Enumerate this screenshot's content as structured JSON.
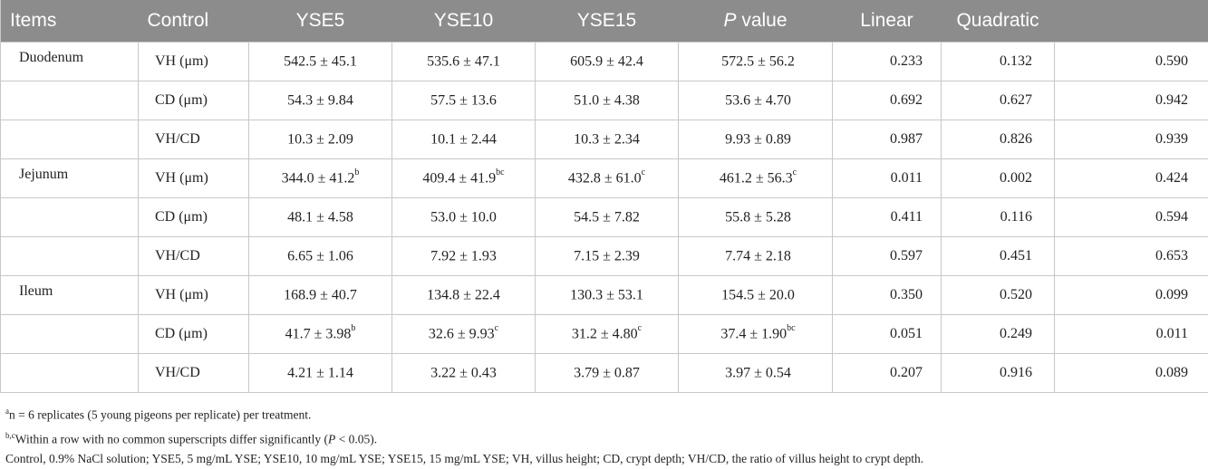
{
  "headers": [
    "Items",
    "Control",
    "YSE5",
    "YSE10",
    "YSE15",
    "value",
    "Linear",
    "Quadratic",
    ""
  ],
  "header_p_italic": "P",
  "rows": [
    {
      "item": "Duodenum",
      "param": "VH (μm)",
      "control": "542.5 ± 45.1",
      "control_sup": "",
      "yse5": "535.6 ± 47.1",
      "yse5_sup": "",
      "yse10": "605.9 ± 42.4",
      "yse10_sup": "",
      "yse15": "572.5 ± 56.2",
      "yse15_sup": "",
      "p": "0.233",
      "linear": "0.132",
      "quadratic": "0.590"
    },
    {
      "item": "",
      "param": "CD (μm)",
      "control": "54.3 ± 9.84",
      "control_sup": "",
      "yse5": "57.5 ± 13.6",
      "yse5_sup": "",
      "yse10": "51.0 ± 4.38",
      "yse10_sup": "",
      "yse15": "53.6 ± 4.70",
      "yse15_sup": "",
      "p": "0.692",
      "linear": "0.627",
      "quadratic": "0.942"
    },
    {
      "item": "",
      "param": "VH/CD",
      "control": "10.3 ± 2.09",
      "control_sup": "",
      "yse5": "10.1 ± 2.44",
      "yse5_sup": "",
      "yse10": "10.3 ± 2.34",
      "yse10_sup": "",
      "yse15": "9.93 ± 0.89",
      "yse15_sup": "",
      "p": "0.987",
      "linear": "0.826",
      "quadratic": "0.939"
    },
    {
      "item": "Jejunum",
      "param": "VH (μm)",
      "control": "344.0 ± 41.2",
      "control_sup": "b",
      "yse5": "409.4 ± 41.9",
      "yse5_sup": "bc",
      "yse10": "432.8 ± 61.0",
      "yse10_sup": "c",
      "yse15": "461.2 ± 56.3",
      "yse15_sup": "c",
      "p": "0.011",
      "linear": "0.002",
      "quadratic": "0.424"
    },
    {
      "item": "",
      "param": "CD (μm)",
      "control": "48.1 ± 4.58",
      "control_sup": "",
      "yse5": "53.0 ± 10.0",
      "yse5_sup": "",
      "yse10": "54.5 ± 7.82",
      "yse10_sup": "",
      "yse15": "55.8 ± 5.28",
      "yse15_sup": "",
      "p": "0.411",
      "linear": "0.116",
      "quadratic": "0.594"
    },
    {
      "item": "",
      "param": "VH/CD",
      "control": "6.65 ± 1.06",
      "control_sup": "",
      "yse5": "7.92 ± 1.93",
      "yse5_sup": "",
      "yse10": "7.15 ± 2.39",
      "yse10_sup": "",
      "yse15": "7.74 ± 2.18",
      "yse15_sup": "",
      "p": "0.597",
      "linear": "0.451",
      "quadratic": "0.653"
    },
    {
      "item": "Ileum",
      "param": "VH (μm)",
      "control": "168.9 ± 40.7",
      "control_sup": "",
      "yse5": "134.8 ± 22.4",
      "yse5_sup": "",
      "yse10": "130.3 ± 53.1",
      "yse10_sup": "",
      "yse15": "154.5 ± 20.0",
      "yse15_sup": "",
      "p": "0.350",
      "linear": "0.520",
      "quadratic": "0.099"
    },
    {
      "item": "",
      "param": "CD (μm)",
      "control": "41.7 ± 3.98",
      "control_sup": "b",
      "yse5": "32.6 ± 9.93",
      "yse5_sup": "c",
      "yse10": "31.2 ± 4.80",
      "yse10_sup": "c",
      "yse15": "37.4 ± 1.90",
      "yse15_sup": "bc",
      "p": "0.051",
      "linear": "0.249",
      "quadratic": "0.011"
    },
    {
      "item": "",
      "param": "VH/CD",
      "control": "4.21 ± 1.14",
      "control_sup": "",
      "yse5": "3.22 ± 0.43",
      "yse5_sup": "",
      "yse10": "3.79 ± 0.87",
      "yse10_sup": "",
      "yse15": "3.97 ± 0.54",
      "yse15_sup": "",
      "p": "0.207",
      "linear": "0.916",
      "quadratic": "0.089"
    }
  ],
  "notes": {
    "note_a_sup": "a",
    "note_a": "n = 6 replicates (5 young pigeons per replicate) per treatment.",
    "note_bc_sup": "b,c",
    "note_bc_pre": "Within a row with no common superscripts differ significantly (",
    "note_bc_p": "P",
    "note_bc_post": " < 0.05).",
    "abbrev": "Control, 0.9% NaCl solution; YSE5, 5 mg/mL YSE; YSE10, 10 mg/mL YSE; YSE15, 15 mg/mL YSE; VH, villus height; CD, crypt depth; VH/CD, the ratio of villus height to crypt depth."
  }
}
